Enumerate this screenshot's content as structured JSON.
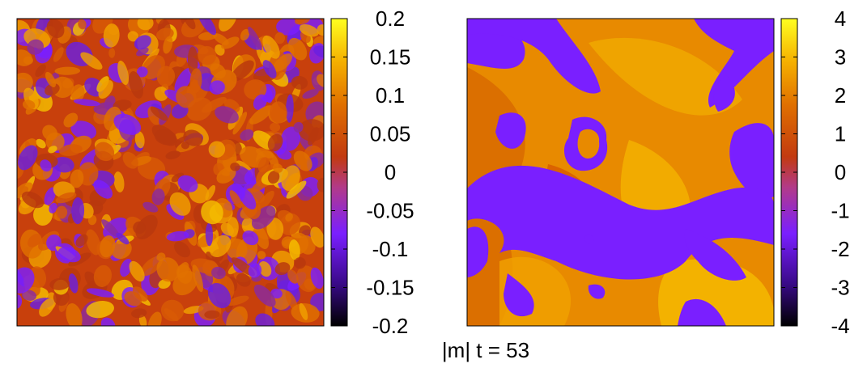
{
  "caption": "|m| t = 53",
  "colors": {
    "palette": [
      "#000000",
      "#3a0a8a",
      "#7a1fff",
      "#b23a8a",
      "#c23a10",
      "#e07000",
      "#f5b000",
      "#ffff20"
    ],
    "frame": "#000000",
    "background": "#ffffff"
  },
  "chart_data": [
    {
      "type": "heatmap",
      "title": "",
      "colormap": "gnuplot",
      "clim": [
        -0.2,
        0.2
      ],
      "colorbar_ticks": [
        0.2,
        0.15,
        0.1,
        0.05,
        0,
        -0.05,
        -0.1,
        -0.15,
        -0.2
      ],
      "colorbar_tick_labels": [
        "0.2",
        "0.15",
        "0.1",
        "0.05",
        "0",
        "-0.05",
        "-0.1",
        "-0.15",
        "-0.2"
      ],
      "field_description": "fine-grained noisy field, mostly orange-red with small violet and yellow patches"
    },
    {
      "type": "heatmap",
      "title": "",
      "colormap": "gnuplot",
      "clim": [
        -4,
        4
      ],
      "colorbar_ticks": [
        4,
        3,
        2,
        1,
        0,
        -1,
        -2,
        -3,
        -4
      ],
      "colorbar_tick_labels": [
        "4",
        "3",
        "2",
        "1",
        "0",
        "-1",
        "-2",
        "-3",
        "-4"
      ],
      "field_description": "large orange domains separated by sharp violet domain walls"
    }
  ]
}
